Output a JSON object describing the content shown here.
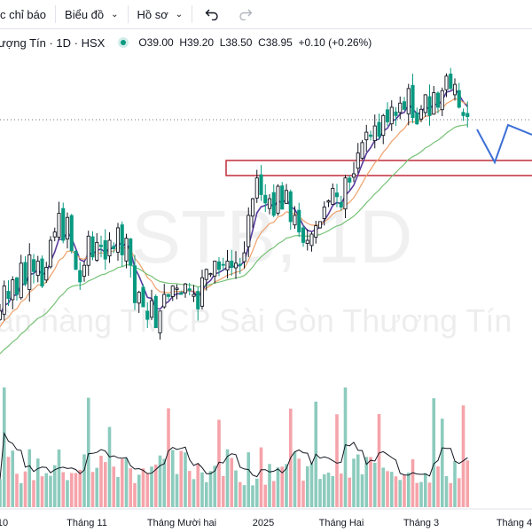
{
  "toolbar": {
    "indicators_label": "c chỉ báo",
    "chart_label": "Biểu đồ",
    "profile_label": "Hồ sơ"
  },
  "legend": {
    "title": "ượng Tín · 1D · HSX",
    "open": "O39.00",
    "high": "H39.20",
    "low": "L38.50",
    "close": "C38.95",
    "change": "+0.10 (+0.26%)"
  },
  "watermark": {
    "symbol": "STB, 1D",
    "name": "ân hàng TMCP Sài Gòn Thương Tín"
  },
  "colors": {
    "up": "#089981",
    "down": "#f23645",
    "up_candle": "#131722",
    "ema_fast": "#5b3c9e",
    "ema_mid": "#f0a06a",
    "ema_slow": "#77c277",
    "vol_up": "#8ccbbd",
    "vol_down": "#f5a3aa",
    "zone": "#c43a48",
    "projection": "#3d6fd6"
  },
  "chart_data": {
    "type": "candlestick",
    "x_labels": [
      "10",
      "Tháng 11",
      "Tháng Mười hai",
      "2025",
      "Tháng Hai",
      "Tháng 3",
      "Tháng 4"
    ],
    "last_close": 38.95,
    "zone": [
      34.2,
      35.4
    ],
    "price_range": [
      27.5,
      42.0
    ],
    "closes": [
      29.6,
      30.8,
      30.2,
      31.1,
      30.4,
      31.9,
      30.9,
      32.3,
      31.5,
      32.0,
      30.8,
      31.7,
      33.0,
      33.4,
      34.3,
      33.0,
      34.1,
      32.5,
      31.6,
      31.0,
      31.8,
      33.2,
      32.2,
      32.9,
      32.7,
      32.1,
      33.0,
      32.6,
      33.6,
      32.3,
      33.1,
      31.8,
      30.0,
      30.5,
      29.8,
      29.2,
      30.1,
      28.8,
      29.6,
      30.4,
      30.3,
      30.8,
      30.7,
      30.4,
      30.9,
      30.6,
      30.4,
      29.7,
      31.2,
      31.6,
      31.4,
      32.0,
      31.6,
      31.8,
      32.0,
      31.7,
      31.9,
      31.8,
      32.4,
      34.2,
      35.0,
      36.0,
      35.2,
      34.8,
      35.0,
      34.2,
      35.6,
      34.5,
      35.4,
      33.9,
      34.2,
      33.4,
      32.9,
      33.0,
      33.3,
      33.7,
      33.9,
      34.6,
      34.9,
      35.5,
      35.1,
      34.6,
      36.0,
      35.8,
      36.2,
      37.2,
      37.7,
      38.2,
      38.0,
      38.5,
      38.0,
      39.0,
      38.7,
      39.4,
      39.0,
      39.6,
      39.3,
      40.3,
      38.9,
      38.6,
      39.3,
      40.0,
      39.0,
      40.1,
      39.4,
      40.2,
      40.9,
      40.3,
      40.5,
      39.4,
      39.0,
      38.95
    ]
  }
}
